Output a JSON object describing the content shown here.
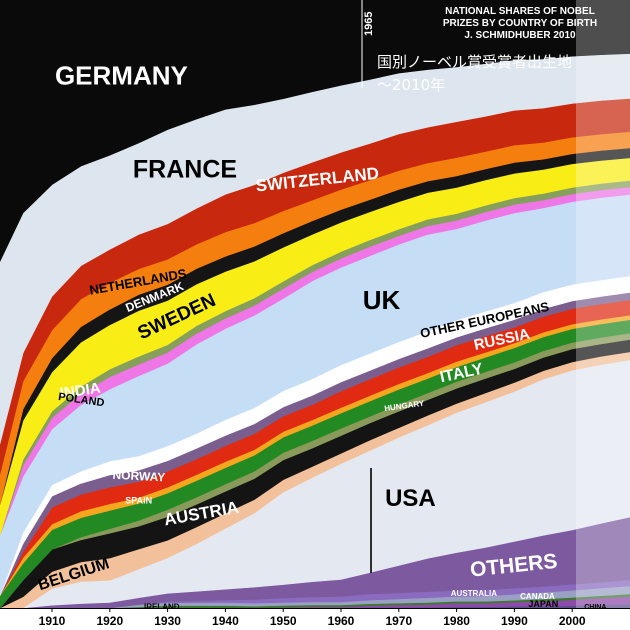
{
  "chart_data": {
    "type": "area",
    "stacked": true,
    "normalized": true,
    "title_lines": [
      "NATIONAL SHARES OF NOBEL",
      "PRIZES BY COUNTRY OF BIRTH",
      "J. SCHMIDHUBER 2010"
    ],
    "subtitle_lines": [
      "国別ノーベル賞受賞者出生地",
      "～2010年"
    ],
    "marker_label": "1965",
    "x_ticks": [
      "1910",
      "1920",
      "1930",
      "1940",
      "1950",
      "1960",
      "1970",
      "1980",
      "1990",
      "2000"
    ],
    "xlim": [
      1901,
      2010
    ],
    "ylim": [
      0,
      1
    ],
    "x": [
      1901,
      1905,
      1910,
      1915,
      1920,
      1925,
      1930,
      1935,
      1940,
      1945,
      1950,
      1955,
      1960,
      1965,
      1970,
      1975,
      1980,
      1985,
      1990,
      1995,
      2000,
      2005,
      2010
    ],
    "series": [
      {
        "name": "CHINA",
        "color": "#5a4e8c",
        "values": [
          0,
          0,
          0,
          0,
          0,
          0,
          0,
          0,
          0,
          0,
          0,
          0,
          0,
          0.001,
          0.001,
          0.001,
          0.002,
          0.002,
          0.003,
          0.003,
          0.004,
          0.005,
          0.006
        ]
      },
      {
        "name": "JAPAN",
        "color": "#8e4aa8",
        "values": [
          0,
          0,
          0,
          0,
          0,
          0,
          0,
          0,
          0,
          0,
          0.001,
          0.002,
          0.002,
          0.003,
          0.004,
          0.005,
          0.006,
          0.006,
          0.007,
          0.008,
          0.01,
          0.012,
          0.014
        ]
      },
      {
        "name": "IRELAND",
        "color": "#3d7a2e",
        "values": [
          0,
          0,
          0,
          0,
          0,
          0.002,
          0.004,
          0.004,
          0.004,
          0.003,
          0.003,
          0.003,
          0.003,
          0.003,
          0.003,
          0.003,
          0.003,
          0.003,
          0.003,
          0.004,
          0.004,
          0.004,
          0.004
        ]
      },
      {
        "name": "CANADA",
        "color": "#9aa0c4",
        "values": [
          0,
          0,
          0,
          0,
          0,
          0.004,
          0.005,
          0.005,
          0.005,
          0.005,
          0.005,
          0.005,
          0.005,
          0.006,
          0.007,
          0.008,
          0.008,
          0.009,
          0.01,
          0.011,
          0.012,
          0.013,
          0.014
        ]
      },
      {
        "name": "AUSTRALIA",
        "color": "#8a6bbf",
        "values": [
          0,
          0,
          0,
          0,
          0,
          0,
          0.002,
          0.003,
          0.004,
          0.006,
          0.007,
          0.008,
          0.009,
          0.01,
          0.01,
          0.01,
          0.01,
          0.01,
          0.01,
          0.01,
          0.01,
          0.01,
          0.01
        ]
      },
      {
        "name": "OTHERS",
        "color": "#7d5aa0",
        "values": [
          0,
          0,
          0.005,
          0.008,
          0.01,
          0.012,
          0.014,
          0.016,
          0.018,
          0.02,
          0.022,
          0.025,
          0.028,
          0.035,
          0.045,
          0.055,
          0.062,
          0.07,
          0.078,
          0.085,
          0.092,
          0.1,
          0.108
        ]
      },
      {
        "name": "USA",
        "color": "#e4e8f1",
        "values": [
          0,
          0,
          0.03,
          0.04,
          0.04,
          0.05,
          0.06,
          0.08,
          0.1,
          0.12,
          0.15,
          0.17,
          0.19,
          0.2,
          0.21,
          0.22,
          0.23,
          0.24,
          0.25,
          0.26,
          0.27,
          0.27,
          0.27
        ]
      },
      {
        "name": "BELGIUM",
        "color": "#f2c09a",
        "values": [
          0,
          0.02,
          0.03,
          0.035,
          0.04,
          0.035,
          0.03,
          0.028,
          0.025,
          0.022,
          0.02,
          0.018,
          0.017,
          0.017,
          0.016,
          0.016,
          0.015,
          0.015,
          0.015,
          0.014,
          0.014,
          0.014,
          0.014
        ]
      },
      {
        "name": "AUSTRIA",
        "color": "#141414",
        "values": [
          0,
          0.03,
          0.04,
          0.04,
          0.045,
          0.04,
          0.04,
          0.038,
          0.036,
          0.034,
          0.032,
          0.03,
          0.029,
          0.028,
          0.027,
          0.026,
          0.025,
          0.024,
          0.023,
          0.022,
          0.022,
          0.021,
          0.021
        ]
      },
      {
        "name": "HUNGARY",
        "color": "#8a9a5b",
        "values": [
          0,
          0,
          0,
          0.005,
          0.008,
          0.01,
          0.012,
          0.012,
          0.012,
          0.012,
          0.012,
          0.012,
          0.012,
          0.011,
          0.011,
          0.011,
          0.011,
          0.011,
          0.011,
          0.011,
          0.011,
          0.011,
          0.011
        ]
      },
      {
        "name": "ITALY",
        "color": "#238a23",
        "values": [
          0.02,
          0.03,
          0.035,
          0.035,
          0.033,
          0.03,
          0.028,
          0.028,
          0.027,
          0.026,
          0.025,
          0.025,
          0.025,
          0.025,
          0.025,
          0.024,
          0.024,
          0.024,
          0.024,
          0.023,
          0.023,
          0.023,
          0.023
        ]
      },
      {
        "name": "SPAIN",
        "color": "#f5a51e",
        "values": [
          0,
          0.01,
          0.01,
          0.012,
          0.012,
          0.01,
          0.01,
          0.01,
          0.01,
          0.009,
          0.009,
          0.009,
          0.009,
          0.009,
          0.009,
          0.009,
          0.009,
          0.008,
          0.008,
          0.008,
          0.008,
          0.008,
          0.008
        ]
      },
      {
        "name": "RUSSIA",
        "color": "#e02a12",
        "values": [
          0,
          0.01,
          0.03,
          0.03,
          0.03,
          0.028,
          0.027,
          0.026,
          0.026,
          0.026,
          0.025,
          0.025,
          0.027,
          0.027,
          0.027,
          0.027,
          0.027,
          0.027,
          0.026,
          0.026,
          0.026,
          0.026,
          0.026
        ]
      },
      {
        "name": "NORWAY",
        "color": "#7a5f8e",
        "values": [
          0,
          0.015,
          0.02,
          0.02,
          0.022,
          0.02,
          0.018,
          0.018,
          0.017,
          0.016,
          0.015,
          0.015,
          0.015,
          0.014,
          0.014,
          0.014,
          0.013,
          0.013,
          0.013,
          0.013,
          0.013,
          0.013,
          0.013
        ]
      },
      {
        "name": "OTHER EUROPEANS",
        "color": "#ffffff",
        "values": [
          0,
          0.02,
          0.02,
          0.022,
          0.025,
          0.025,
          0.025,
          0.025,
          0.026,
          0.026,
          0.026,
          0.027,
          0.028,
          0.028,
          0.028,
          0.028,
          0.028,
          0.028,
          0.028,
          0.028,
          0.028,
          0.028,
          0.028
        ]
      },
      {
        "name": "UK",
        "color": "#c6ddf6",
        "values": [
          0.1,
          0.1,
          0.1,
          0.12,
          0.13,
          0.14,
          0.14,
          0.15,
          0.15,
          0.15,
          0.15,
          0.16,
          0.16,
          0.16,
          0.16,
          0.16,
          0.15,
          0.15,
          0.15,
          0.14,
          0.14,
          0.14,
          0.14
        ]
      },
      {
        "name": "POLAND",
        "color": "#ee76e6",
        "values": [
          0,
          0.02,
          0.02,
          0.02,
          0.022,
          0.02,
          0.019,
          0.018,
          0.017,
          0.016,
          0.016,
          0.015,
          0.015,
          0.015,
          0.014,
          0.014,
          0.014,
          0.014,
          0.014,
          0.013,
          0.013,
          0.013,
          0.013
        ]
      },
      {
        "name": "INDIA",
        "color": "#86a05b",
        "values": [
          0,
          0.01,
          0.012,
          0.013,
          0.014,
          0.014,
          0.013,
          0.013,
          0.012,
          0.012,
          0.012,
          0.011,
          0.011,
          0.011,
          0.011,
          0.011,
          0.011,
          0.011,
          0.011,
          0.011,
          0.011,
          0.011,
          0.011
        ]
      },
      {
        "name": "SWEDEN",
        "color": "#f8ee16",
        "values": [
          0.05,
          0.07,
          0.07,
          0.08,
          0.08,
          0.08,
          0.075,
          0.07,
          0.065,
          0.06,
          0.055,
          0.05,
          0.048,
          0.046,
          0.045,
          0.044,
          0.043,
          0.042,
          0.041,
          0.04,
          0.04,
          0.039,
          0.039
        ]
      },
      {
        "name": "DENMARK",
        "color": "#151515",
        "values": [
          0,
          0.02,
          0.025,
          0.028,
          0.028,
          0.028,
          0.027,
          0.026,
          0.025,
          0.024,
          0.023,
          0.022,
          0.021,
          0.02,
          0.02,
          0.019,
          0.019,
          0.018,
          0.018,
          0.017,
          0.017,
          0.017,
          0.017
        ]
      },
      {
        "name": "NETHERLANDS",
        "color": "#f57f0e",
        "values": [
          0.05,
          0.05,
          0.05,
          0.05,
          0.048,
          0.045,
          0.043,
          0.041,
          0.04,
          0.038,
          0.036,
          0.034,
          0.033,
          0.032,
          0.031,
          0.03,
          0.03,
          0.029,
          0.029,
          0.028,
          0.028,
          0.028,
          0.028
        ]
      },
      {
        "name": "SWITZERLAND",
        "color": "#c8280e",
        "values": [
          0.05,
          0.05,
          0.06,
          0.06,
          0.06,
          0.06,
          0.06,
          0.06,
          0.062,
          0.062,
          0.062,
          0.062,
          0.061,
          0.06,
          0.06,
          0.059,
          0.059,
          0.058,
          0.058,
          0.057,
          0.057,
          0.057,
          0.057
        ]
      },
      {
        "name": "FRANCE",
        "color": "#dde5ee",
        "values": [
          0.3,
          0.25,
          0.2,
          0.18,
          0.17,
          0.16,
          0.16,
          0.15,
          0.14,
          0.13,
          0.12,
          0.115,
          0.11,
          0.105,
          0.1,
          0.095,
          0.09,
          0.087,
          0.084,
          0.082,
          0.08,
          0.078,
          0.077
        ]
      },
      {
        "name": "GERMANY",
        "color": "#0a0a0a",
        "values": [
          0.43,
          0.38,
          0.33,
          0.3,
          0.28,
          0.25,
          0.22,
          0.2,
          0.18,
          0.17,
          0.16,
          0.15,
          0.14,
          0.13,
          0.12,
          0.115,
          0.11,
          0.105,
          0.1,
          0.098,
          0.095,
          0.093,
          0.092
        ]
      }
    ],
    "grid": false,
    "legend": "labels placed inline on the bands"
  },
  "colors": {
    "background": "#ffffff",
    "title_text": "#ffffff",
    "cjk_text": "#ffffff",
    "axis_text": "#000000",
    "faded_overlay": "#ffffff"
  }
}
